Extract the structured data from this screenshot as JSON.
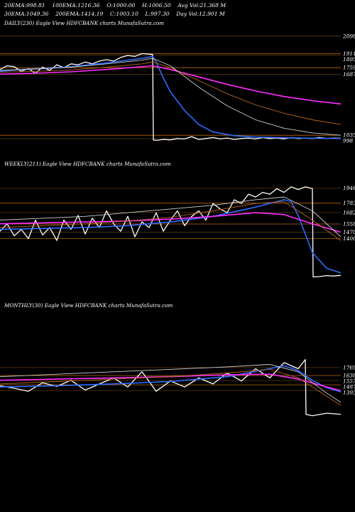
{
  "header": {
    "row1": [
      {
        "label": "20EMA:",
        "value": "998.81"
      },
      {
        "label": "100EMA:",
        "value": "1216.36"
      },
      {
        "label": "O:",
        "value": "1000.00"
      },
      {
        "label": "H:",
        "value": "1006.50"
      },
      {
        "label": "Avg Vol:",
        "value": "21.368 M"
      }
    ],
    "row2": [
      {
        "label": "30EMA:",
        "value": "1049.36"
      },
      {
        "label": "200EMA:",
        "value": "1414.19"
      },
      {
        "label": "C:",
        "value": "1003.10"
      },
      {
        "label": "L:",
        "value": "997.30"
      },
      {
        "label": "Day Vol:",
        "value": "12.901 M"
      }
    ]
  },
  "colors": {
    "background": "#000000",
    "price": "#ffffff",
    "ema_blue": "#2f6bff",
    "ema_magenta": "#ff2cff",
    "ema_brown": "#b5651d",
    "level_line": "#b8660c",
    "level_line_dark": "#5a3a10"
  },
  "chart_data": [
    {
      "type": "line",
      "title": "DAILY(230) Eagle  View  HDFCBANK charts MunafaSutra.com",
      "y_ticks": [
        "2098",
        "1911",
        "1895",
        "1759",
        "1687",
        "1035",
        "998"
      ],
      "ylim": [
        960,
        2180
      ],
      "series": [
        {
          "role": "price",
          "x": [
            0,
            10,
            20,
            30,
            40,
            50,
            60,
            70,
            80,
            90,
            100,
            110,
            120,
            130,
            140,
            150,
            160,
            170,
            180,
            190,
            200,
            210,
            215,
            216,
            220,
            230,
            240,
            250,
            260,
            270,
            280,
            290,
            300,
            310,
            320,
            330,
            340,
            350,
            360,
            370,
            380,
            390,
            400,
            410,
            420,
            430,
            440,
            450,
            460,
            470,
            480
          ],
          "values": [
            1740,
            1780,
            1770,
            1720,
            1750,
            1700,
            1765,
            1730,
            1790,
            1760,
            1800,
            1790,
            1820,
            1800,
            1830,
            1845,
            1830,
            1870,
            1890,
            1880,
            1910,
            1905,
            1900,
            985,
            980,
            990,
            985,
            1000,
            995,
            1020,
            990,
            1000,
            1010,
            995,
            1005,
            990,
            1000,
            1005,
            995,
            1010,
            1000,
            1005,
            995,
            1010,
            1000,
            1005,
            1000,
            1010,
            1000,
            1005,
            1003
          ]
        },
        {
          "role": "ema",
          "color": "blue",
          "x": [
            0,
            30,
            60,
            100,
            150,
            200,
            215,
            220,
            230,
            240,
            260,
            280,
            300,
            330,
            360,
            400,
            440,
            480
          ],
          "values": [
            1720,
            1740,
            1750,
            1770,
            1810,
            1860,
            1880,
            1820,
            1650,
            1500,
            1300,
            1150,
            1070,
            1030,
            1015,
            1008,
            1003,
            1000
          ]
        },
        {
          "role": "ema",
          "color": "magenta",
          "x": [
            0,
            50,
            100,
            150,
            200,
            215,
            240,
            280,
            320,
            360,
            400,
            440,
            480
          ],
          "values": [
            1690,
            1700,
            1715,
            1740,
            1770,
            1780,
            1740,
            1660,
            1580,
            1510,
            1450,
            1405,
            1370
          ]
        },
        {
          "role": "ema",
          "color": "brown",
          "x": [
            0,
            50,
            100,
            150,
            200,
            215,
            240,
            280,
            320,
            360,
            400,
            440,
            480
          ],
          "values": [
            1710,
            1720,
            1735,
            1765,
            1800,
            1820,
            1760,
            1620,
            1480,
            1360,
            1270,
            1200,
            1150
          ]
        },
        {
          "role": "ema",
          "color": "gray",
          "x": [
            0,
            50,
            100,
            150,
            200,
            215,
            240,
            280,
            320,
            360,
            400,
            440,
            480
          ],
          "values": [
            1730,
            1745,
            1765,
            1800,
            1840,
            1860,
            1780,
            1550,
            1350,
            1200,
            1110,
            1060,
            1035
          ]
        }
      ]
    },
    {
      "type": "line",
      "title": "WEEKLY(211) Eagle  View  HDFCBANK charts MunafaSutra.com",
      "y_ticks": [
        "1946",
        "1783",
        "1682",
        "1558",
        "1470",
        "1400"
      ],
      "ylim": [
        920,
        2150
      ],
      "series": [
        {
          "role": "price",
          "x": [
            0,
            10,
            20,
            30,
            40,
            50,
            60,
            70,
            80,
            90,
            100,
            110,
            120,
            130,
            140,
            150,
            160,
            170,
            180,
            190,
            200,
            210,
            220,
            230,
            240,
            250,
            260,
            270,
            280,
            290,
            300,
            310,
            320,
            330,
            340,
            350,
            360,
            370,
            380,
            390,
            400,
            410,
            420,
            430,
            440,
            441,
            450,
            460,
            470,
            480
          ],
          "values": [
            1480,
            1560,
            1430,
            1500,
            1400,
            1600,
            1440,
            1520,
            1380,
            1600,
            1500,
            1650,
            1450,
            1620,
            1520,
            1700,
            1560,
            1480,
            1640,
            1420,
            1580,
            1520,
            1680,
            1480,
            1600,
            1700,
            1540,
            1640,
            1700,
            1600,
            1780,
            1720,
            1680,
            1820,
            1780,
            1880,
            1850,
            1900,
            1880,
            1940,
            1900,
            1960,
            1930,
            1960,
            1940,
            985,
            990,
            1000,
            995,
            1003
          ]
        },
        {
          "role": "ema",
          "color": "blue",
          "x": [
            0,
            60,
            120,
            180,
            240,
            300,
            360,
            400,
            410,
            420,
            430,
            440,
            460,
            480
          ],
          "values": [
            1500,
            1510,
            1520,
            1540,
            1580,
            1640,
            1740,
            1820,
            1800,
            1650,
            1450,
            1250,
            1080,
            1030
          ]
        },
        {
          "role": "ema",
          "color": "magenta",
          "x": [
            0,
            60,
            120,
            180,
            240,
            300,
            360,
            400,
            440,
            480
          ],
          "values": [
            1560,
            1570,
            1580,
            1590,
            1610,
            1640,
            1680,
            1660,
            1560,
            1470
          ]
        },
        {
          "role": "ema",
          "color": "brown",
          "x": [
            0,
            60,
            120,
            180,
            240,
            300,
            360,
            400,
            440,
            480
          ],
          "values": [
            1520,
            1540,
            1560,
            1590,
            1630,
            1700,
            1780,
            1800,
            1600,
            1380
          ]
        },
        {
          "role": "ema",
          "color": "gray",
          "x": [
            0,
            60,
            120,
            180,
            240,
            300,
            360,
            400,
            440,
            480
          ],
          "values": [
            1600,
            1620,
            1640,
            1680,
            1720,
            1760,
            1820,
            1850,
            1700,
            1420
          ]
        }
      ]
    },
    {
      "type": "line",
      "title": "MONTHLY(30) Eagle  View  HDFCBANK charts MunafaSutra.com",
      "y_ticks": [
        "1769",
        "1638",
        "1557",
        "1487",
        "1393"
      ],
      "ylim": [
        800,
        2700
      ],
      "series": [
        {
          "role": "price",
          "x": [
            0,
            20,
            40,
            60,
            80,
            100,
            120,
            140,
            160,
            180,
            200,
            220,
            240,
            260,
            280,
            300,
            320,
            340,
            360,
            380,
            400,
            420,
            430,
            431,
            440,
            460,
            480
          ],
          "values": [
            1470,
            1430,
            1380,
            1520,
            1460,
            1560,
            1400,
            1500,
            1600,
            1450,
            1700,
            1380,
            1550,
            1450,
            1600,
            1500,
            1680,
            1550,
            1750,
            1600,
            1850,
            1750,
            1900,
            1000,
            980,
            1020,
            1003
          ]
        },
        {
          "role": "ema",
          "color": "blue",
          "x": [
            0,
            80,
            160,
            240,
            320,
            380,
            400,
            420,
            440,
            460,
            480
          ],
          "values": [
            1450,
            1470,
            1500,
            1540,
            1620,
            1750,
            1800,
            1720,
            1560,
            1440,
            1370
          ]
        },
        {
          "role": "ema",
          "color": "magenta",
          "x": [
            0,
            80,
            160,
            240,
            320,
            380,
            420,
            460,
            480
          ],
          "values": [
            1560,
            1580,
            1600,
            1620,
            1650,
            1660,
            1580,
            1450,
            1390
          ]
        },
        {
          "role": "ema",
          "color": "brown",
          "x": [
            0,
            80,
            160,
            240,
            320,
            380,
            420,
            460,
            480
          ],
          "values": [
            1500,
            1540,
            1580,
            1620,
            1680,
            1740,
            1600,
            1300,
            1150
          ]
        },
        {
          "role": "ema",
          "color": "gray",
          "x": [
            0,
            80,
            160,
            240,
            320,
            380,
            420,
            460,
            480
          ],
          "values": [
            1620,
            1660,
            1700,
            1740,
            1780,
            1820,
            1700,
            1350,
            1200
          ]
        }
      ]
    }
  ]
}
